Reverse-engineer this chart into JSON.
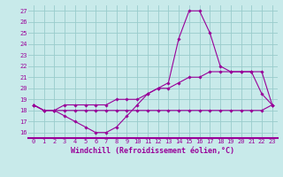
{
  "x": [
    0,
    1,
    2,
    3,
    4,
    5,
    6,
    7,
    8,
    9,
    10,
    11,
    12,
    13,
    14,
    15,
    16,
    17,
    18,
    19,
    20,
    21,
    22,
    23
  ],
  "line1": [
    18.5,
    18.0,
    18.0,
    17.5,
    17.0,
    16.5,
    16.0,
    16.0,
    16.5,
    17.5,
    18.5,
    19.5,
    20.0,
    20.5,
    24.5,
    27.0,
    27.0,
    25.0,
    22.0,
    21.5,
    21.5,
    21.5,
    19.5,
    18.5
  ],
  "line2": [
    18.5,
    18.0,
    18.0,
    18.0,
    18.0,
    18.0,
    18.0,
    18.0,
    18.0,
    18.0,
    18.0,
    18.0,
    18.0,
    18.0,
    18.0,
    18.0,
    18.0,
    18.0,
    18.0,
    18.0,
    18.0,
    18.0,
    18.0,
    18.5
  ],
  "line3": [
    18.5,
    18.0,
    18.0,
    18.5,
    18.5,
    18.5,
    18.5,
    18.5,
    19.0,
    19.0,
    19.0,
    19.5,
    20.0,
    20.0,
    20.5,
    21.0,
    21.0,
    21.5,
    21.5,
    21.5,
    21.5,
    21.5,
    21.5,
    18.5
  ],
  "ylim": [
    15.5,
    27.5
  ],
  "yticks": [
    16,
    17,
    18,
    19,
    20,
    21,
    22,
    23,
    24,
    25,
    26,
    27
  ],
  "xlabel": "Windchill (Refroidissement éolien,°C)",
  "line_color": "#990099",
  "bg_color": "#c8eaea",
  "grid_color": "#99cccc",
  "xlabel_color": "#990099",
  "marker": "D",
  "markersize": 1.8,
  "linewidth": 0.8,
  "tick_fontsize": 5.0,
  "xlabel_fontsize": 6.0
}
